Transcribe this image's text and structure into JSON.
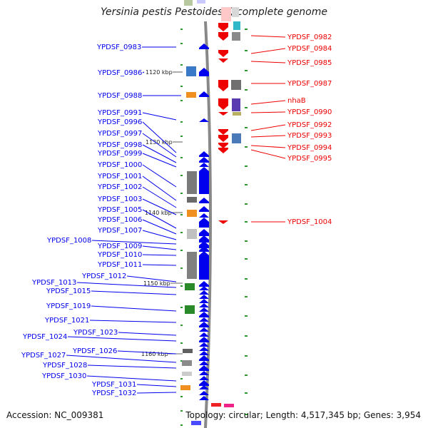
{
  "title": "Yersinia pestis Pestoides F, complete genome",
  "accession_text": "Accession: NC_009381",
  "topology_text": "Topology: circular; Length: 4,517,345 bp; Genes: 3,954",
  "colors": {
    "forward": "#0000ee",
    "reverse": "#ee0000",
    "backbone": "#888888",
    "tick": "#2a9a2a"
  },
  "chart_data": {
    "type": "genome-map",
    "kbp_markers": [
      {
        "label": "1120 kbp",
        "kbp": 1120
      },
      {
        "label": "1130 kbp",
        "kbp": 1130
      },
      {
        "label": "1140 kbp",
        "kbp": 1140
      },
      {
        "label": "1150 kbp",
        "kbp": 1150
      },
      {
        "label": "1160 kbp",
        "kbp": 1160
      }
    ],
    "forward_genes": [
      "YPDSF_0983",
      "YPDSF_0986",
      "YPDSF_0988",
      "YPDSF_0991",
      "YPDSF_0996",
      "YPDSF_0997",
      "YPDSF_0998",
      "YPDSF_0999",
      "YPDSF_1000",
      "YPDSF_1001",
      "YPDSF_1002",
      "YPDSF_1003",
      "YPDSF_1005",
      "YPDSF_1006",
      "YPDSF_1007",
      "YPDSF_1008",
      "YPDSF_1009",
      "YPDSF_1010",
      "YPDSF_1011",
      "YPDSF_1012",
      "YPDSF_1013",
      "YPDSF_1015",
      "YPDSF_1019",
      "YPDSF_1021",
      "YPDSF_1023",
      "YPDSF_1024",
      "YPDSF_1026",
      "YPDSF_1027",
      "YPDSF_1028",
      "YPDSF_1030",
      "YPDSF_1031",
      "YPDSF_1032"
    ],
    "reverse_genes": [
      "YPDSF_0982",
      "YPDSF_0984",
      "YPDSF_0985",
      "YPDSF_0987",
      "nhaB",
      "YPDSF_0990",
      "YPDSF_0992",
      "YPDSF_0993",
      "YPDSF_0994",
      "YPDSF_0995",
      "YPDSF_1004"
    ]
  }
}
